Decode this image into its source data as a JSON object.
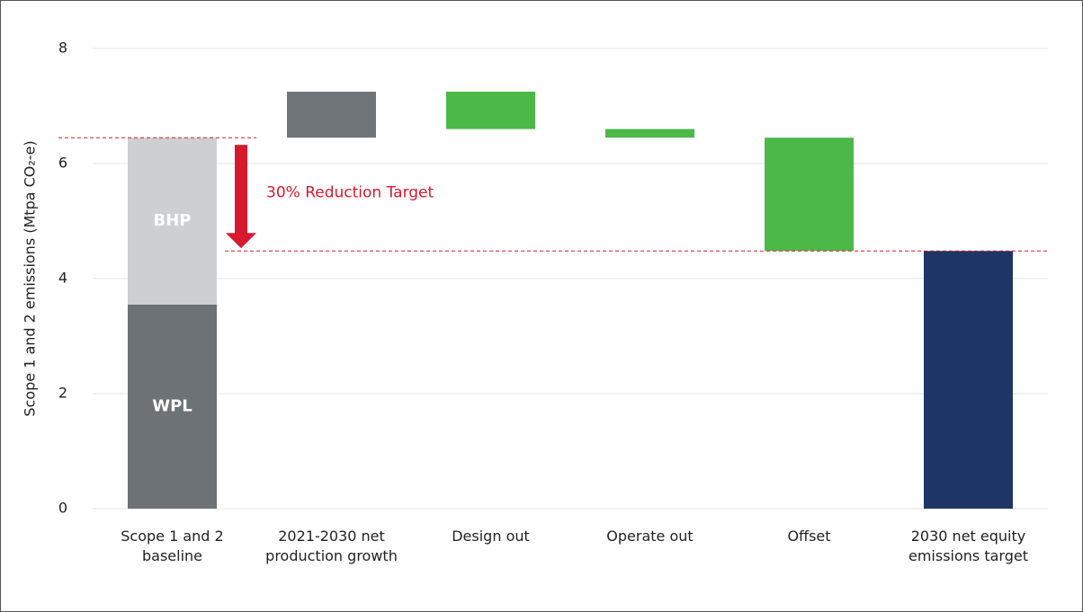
{
  "chart_data": {
    "type": "waterfall",
    "ylabel": "Scope 1 and 2 emissions (Mtpa CO₂-e)",
    "categories": [
      "Scope 1 and 2 baseline",
      "2021-2030 net production growth",
      "Design out",
      "Operate out",
      "Offset",
      "2030 net equity emissions target"
    ],
    "baseline_segments": [
      {
        "name": "WPL",
        "color": "#6d7276",
        "value": 3.55
      },
      {
        "name": "BHP",
        "color": "#cdcfd1",
        "value": 2.9
      }
    ],
    "changes": [
      0.8,
      -0.65,
      -0.15,
      -1.97
    ],
    "total": 4.48,
    "colors": {
      "increase": "#707579",
      "decrease": "#4cb848",
      "total": "#1d3666"
    },
    "annotation": "30% Reduction Target",
    "annotation_color": "#d7192f",
    "ylim": [
      0,
      8
    ],
    "yticks": [
      0,
      2,
      4,
      6,
      8
    ],
    "grid": true
  }
}
